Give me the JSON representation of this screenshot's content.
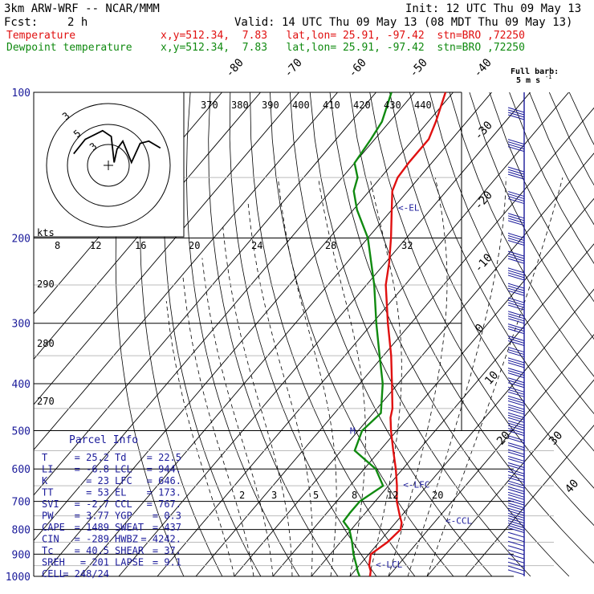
{
  "header": {
    "model": "3km ARW-WRF -- NCAR/MMM",
    "init": "Init: 12 UTC Thu 09 May 13",
    "fcst_label": "Fcst:",
    "fcst_value": "2 h",
    "valid": "Valid: 14 UTC Thu 09 May 13 (08 MDT Thu 09 May 13)",
    "temp_line": {
      "name": "Temperature",
      "info": "x,y=512.34,  7.83   lat,lon= 25.91, -97.42  stn=BRO ,72250"
    },
    "dew_line": {
      "name": "Dewpoint temperature",
      "info": "x,y=512.34,  7.83   lat,lon= 25.91, -97.42  stn=BRO ,72250"
    }
  },
  "wind_key": {
    "line1": "Full barb:",
    "line2": "5 m s",
    "exponent": "-1"
  },
  "hodograph": {
    "units_label": "kts",
    "ring_labels": [
      "3",
      "5",
      "3"
    ]
  },
  "parcel_info": {
    "title": "Parcel Info",
    "rows": [
      {
        "k1": "T",
        "v1": "25.2",
        "k2": "Td",
        "v2": "22.5"
      },
      {
        "k1": "LI",
        "v1": "-6.8",
        "k2": "LCL",
        "v2": "944."
      },
      {
        "k1": "K",
        "v1": "23",
        "k2": "LFC",
        "v2": "646."
      },
      {
        "k1": "TT",
        "v1": "53",
        "k2": "EL",
        "v2": "173."
      },
      {
        "k1": "SVI",
        "v1": "-2.7",
        "k2": "CCL",
        "v2": "767."
      },
      {
        "k1": "PW",
        "v1": "3.77",
        "k2": "YGP",
        "v2": "0.3"
      },
      {
        "k1": "CAPE",
        "v1": "1489",
        "k2": "SWEAT",
        "v2": "437"
      },
      {
        "k1": "CIN",
        "v1": "-289",
        "k2": "HWBZ",
        "v2": "4242."
      },
      {
        "k1": "Tc",
        "v1": "40.5",
        "k2": "SHEAR",
        "v2": "37."
      },
      {
        "k1": "SREH",
        "v1": "201",
        "k2": "LAPSE",
        "v2": "9.1"
      },
      {
        "k1": "CELL",
        "v1": "248/24",
        "k2": "",
        "v2": ""
      }
    ]
  },
  "colors": {
    "temperature": "#e01010",
    "dewpoint": "#108a10",
    "labels": "#1a1a9a",
    "wind": "#1a1a9a",
    "grid": "#000000"
  },
  "chart_data": {
    "type": "line",
    "subtype": "skew-t log-p",
    "pressure_levels": [
      100,
      200,
      300,
      400,
      500,
      600,
      700,
      800,
      900,
      1000
    ],
    "y_scale": "log",
    "ylim": [
      1000,
      100
    ],
    "isotherm_labels": [
      "-80",
      "-70",
      "-60",
      "-50",
      "-40",
      "-30",
      "-20",
      "-10",
      "0",
      "10",
      "20",
      "30",
      "40"
    ],
    "theta_labels_top": [
      "370",
      "380",
      "390",
      "400",
      "410",
      "420",
      "430",
      "440"
    ],
    "theta_labels_left": [
      "290",
      "280",
      "270"
    ],
    "mixing_ratio_labels_top": [
      "8",
      "12",
      "16",
      "20",
      "24",
      "28",
      "32"
    ],
    "mixing_ratio_labels_bottom": [
      "2",
      "3",
      "5",
      "8",
      "12",
      "20"
    ],
    "level_markers": [
      {
        "label": "<-EL",
        "p": 173
      },
      {
        "label": "<-LFC",
        "p": 646
      },
      {
        "label": "<-CCL",
        "p": 767
      },
      {
        "label": "<-LCL",
        "p": 944
      },
      {
        "label": "M",
        "p": 500
      }
    ],
    "series": [
      {
        "name": "Temperature",
        "points": [
          [
            1000,
            25.2
          ],
          [
            975,
            24.2
          ],
          [
            950,
            22.6
          ],
          [
            900,
            20.5
          ],
          [
            850,
            22.2
          ],
          [
            800,
            22.8
          ],
          [
            775,
            21.6
          ],
          [
            750,
            19.6
          ],
          [
            700,
            15.6
          ],
          [
            650,
            12.2
          ],
          [
            600,
            8.2
          ],
          [
            550,
            3.5
          ],
          [
            500,
            -1.5
          ],
          [
            470,
            -4.5
          ],
          [
            450,
            -6.0
          ],
          [
            400,
            -11.6
          ],
          [
            350,
            -18.0
          ],
          [
            300,
            -26.0
          ],
          [
            250,
            -35.0
          ],
          [
            225,
            -39.0
          ],
          [
            200,
            -44.0
          ],
          [
            175,
            -50.0
          ],
          [
            160,
            -54.0
          ],
          [
            150,
            -55.6
          ],
          [
            140,
            -56.0
          ],
          [
            125,
            -56.0
          ],
          [
            115,
            -58.0
          ],
          [
            100,
            -62.0
          ]
        ]
      },
      {
        "name": "Dewpoint temperature",
        "points": [
          [
            1000,
            22.5
          ],
          [
            975,
            20.8
          ],
          [
            950,
            19.3
          ],
          [
            900,
            16.0
          ],
          [
            850,
            13.0
          ],
          [
            800,
            9.5
          ],
          [
            770,
            6.2
          ],
          [
            740,
            6.0
          ],
          [
            700,
            6.0
          ],
          [
            650,
            8.6
          ],
          [
            600,
            3.0
          ],
          [
            550,
            -6.5
          ],
          [
            500,
            -9.0
          ],
          [
            460,
            -8.0
          ],
          [
            400,
            -14.0
          ],
          [
            350,
            -21.0
          ],
          [
            300,
            -29.0
          ],
          [
            250,
            -38.0
          ],
          [
            200,
            -50.0
          ],
          [
            175,
            -59.0
          ],
          [
            160,
            -64.0
          ],
          [
            150,
            -66.0
          ],
          [
            140,
            -70.0
          ],
          [
            125,
            -71.0
          ],
          [
            115,
            -72.0
          ],
          [
            100,
            -76.0
          ]
        ]
      }
    ],
    "hodograph_path": [
      [
        -6,
        -2
      ],
      [
        -4,
        -4.5
      ],
      [
        -1,
        -6
      ],
      [
        0.5,
        -5
      ],
      [
        1,
        -0.5
      ],
      [
        1.5,
        -2.8
      ],
      [
        2.5,
        -4.2
      ],
      [
        4,
        -0.5
      ],
      [
        5.5,
        -3.8
      ],
      [
        7,
        -4.2
      ],
      [
        9,
        -3
      ]
    ]
  }
}
